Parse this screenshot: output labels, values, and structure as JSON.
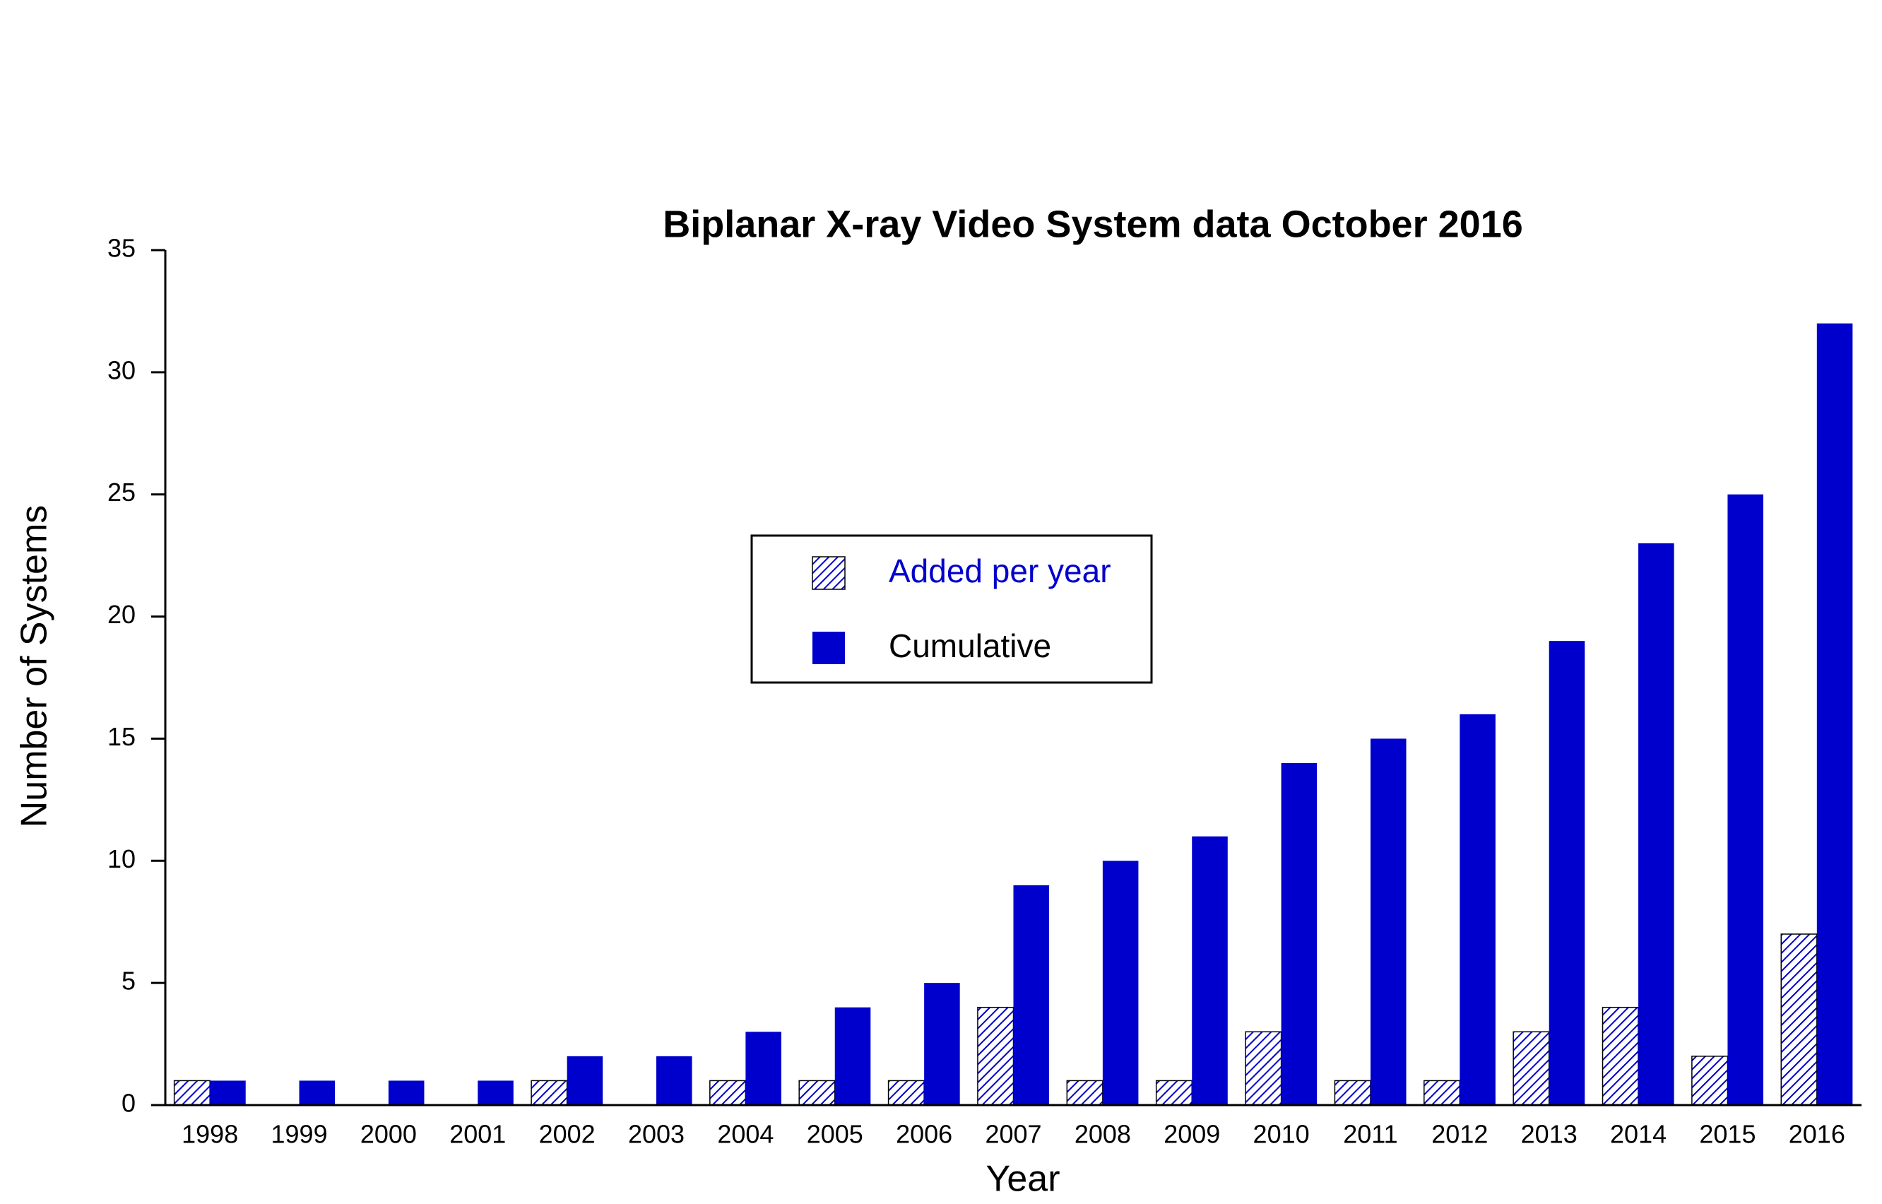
{
  "chart_data": {
    "type": "bar",
    "title": "Biplanar X-ray Video System data October 2016",
    "x_label": "Year",
    "y_label": "Number of  Systems",
    "categories": [
      "1998",
      "1999",
      "2000",
      "2001",
      "2002",
      "2003",
      "2004",
      "2005",
      "2006",
      "2007",
      "2008",
      "2009",
      "2010",
      "2011",
      "2012",
      "2013",
      "2014",
      "2015",
      "2016"
    ],
    "series": [
      {
        "name": "Added per year",
        "color": "#0000cc",
        "pattern": "hatch",
        "values": [
          1,
          0,
          0,
          0,
          1,
          0,
          1,
          1,
          1,
          4,
          1,
          1,
          3,
          1,
          1,
          3,
          4,
          2,
          7
        ]
      },
      {
        "name": "Cumulative",
        "color": "#0000cc",
        "pattern": "solid",
        "values": [
          1,
          1,
          1,
          1,
          2,
          2,
          3,
          4,
          5,
          9,
          10,
          11,
          14,
          15,
          16,
          19,
          23,
          25,
          32
        ]
      }
    ],
    "ylim": [
      0,
      35
    ],
    "yticks": [
      0,
      5,
      10,
      15,
      20,
      25,
      30,
      35
    ],
    "grid": false
  }
}
